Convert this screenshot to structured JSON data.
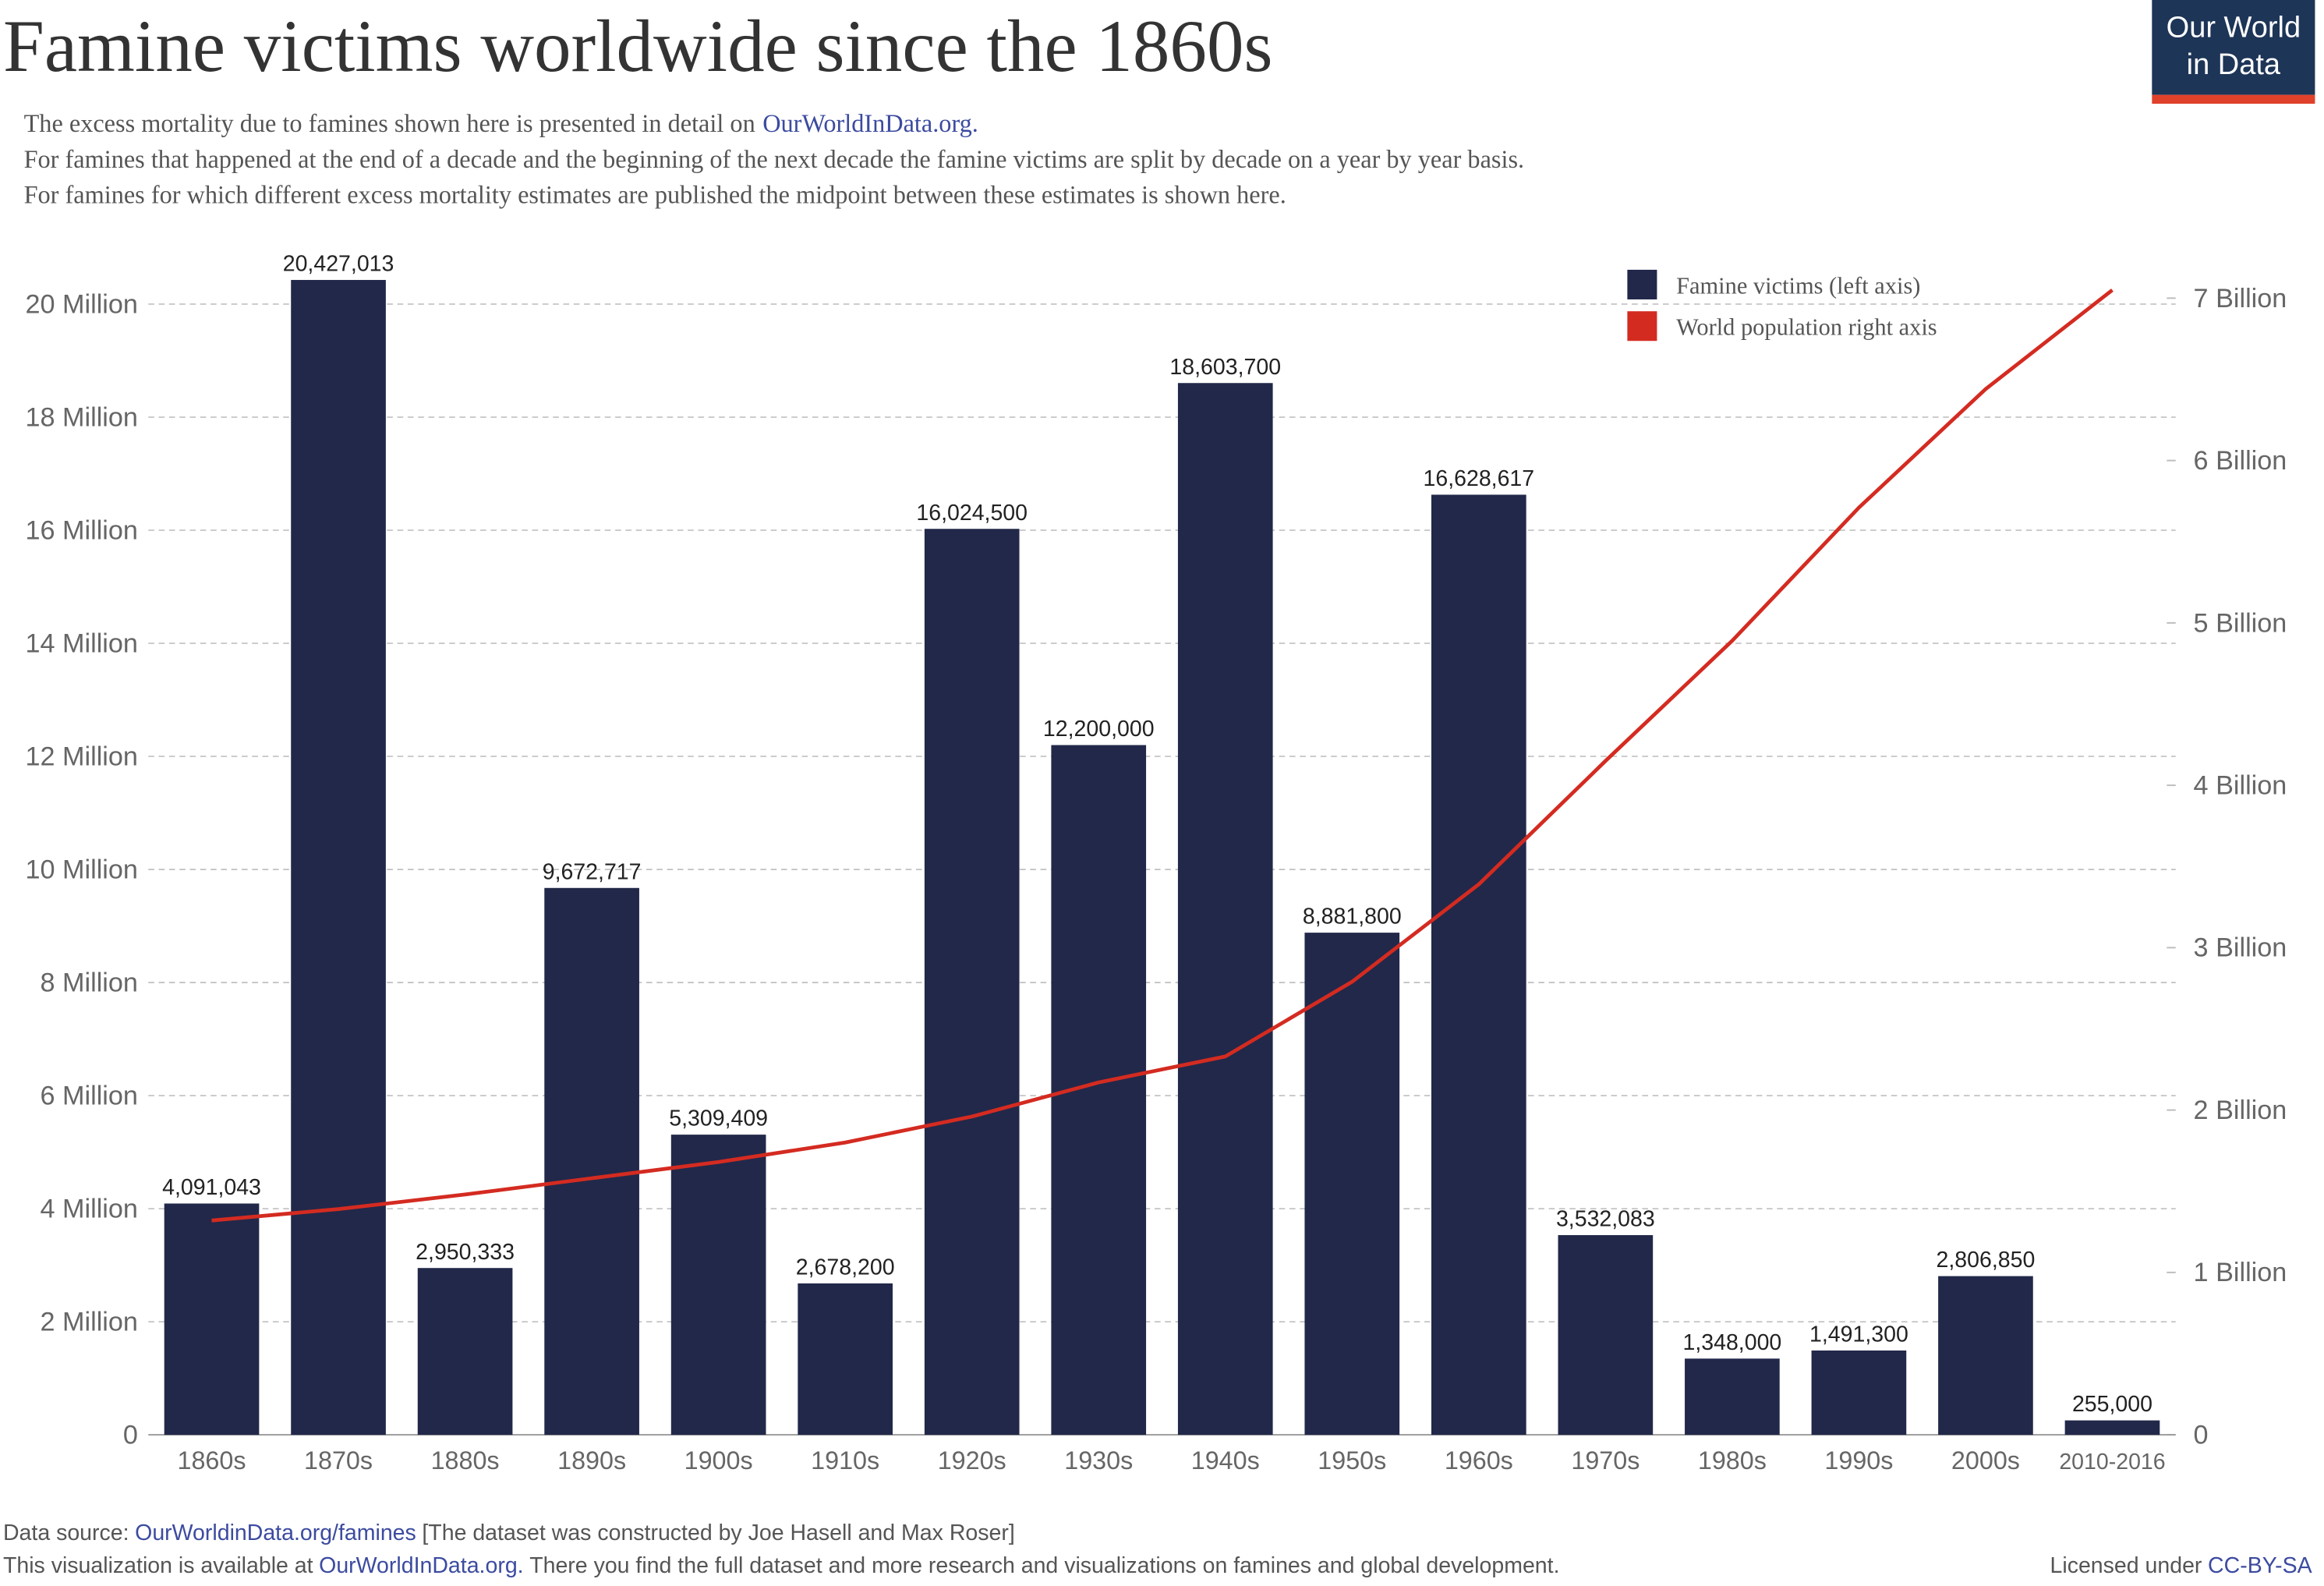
{
  "logo": [
    "Our World",
    "in Data"
  ],
  "footer": {
    "source_prefix": "Data source:",
    "source_link": "OurWorldinData.org/famines",
    "source_note": "[The dataset was constructed by Joe Hasell and Max Roser]",
    "availability_prefix": "This visualization is available at",
    "availability_link": "OurWorldInData.org.",
    "availability_note": "There you find the full dataset and more research and visualizations on famines and global development.",
    "license_prefix": "Licensed under",
    "license_link": "CC-BY-SA"
  },
  "chart_data": {
    "type": "bar",
    "title": "Famine victims worldwide since the 1860s",
    "subtitle": [
      "The excess mortality due to famines shown here is presented in detail on",
      "For famines that happened at the end of a decade and the beginning of the next decade the famine victims are split by decade on a year by year basis.",
      "For famines for which different excess mortality estimates are published the midpoint between these estimates is shown here."
    ],
    "subtitle_link": "OurWorldInData.org.",
    "categories": [
      "1860s",
      "1870s",
      "1880s",
      "1890s",
      "1900s",
      "1910s",
      "1920s",
      "1930s",
      "1940s",
      "1950s",
      "1960s",
      "1970s",
      "1980s",
      "1990s",
      "2000s",
      "2010-2016"
    ],
    "series": [
      {
        "name": "Famine victims (left axis)",
        "color": "#222849",
        "values": [
          4091043,
          20427013,
          2950333,
          9672717,
          5309409,
          2678200,
          16024500,
          12200000,
          18603700,
          8881800,
          16628617,
          3532083,
          1348000,
          1491300,
          2806850,
          255000
        ],
        "value_labels": [
          "4,091,043",
          "20,427,013",
          "2,950,333",
          "9,672,717",
          "5,309,409",
          "2,678,200",
          "16,024,500",
          "12,200,000",
          "18,603,700",
          "8,881,800",
          "16,628,617",
          "3,532,083",
          "1,348,000",
          "1,491,300",
          "2,806,850",
          "255,000"
        ]
      },
      {
        "name": "World population right axis",
        "color": "#d42b21",
        "type": "line",
        "axis": "y2",
        "values": [
          1320000000,
          1390000000,
          1480000000,
          1580000000,
          1680000000,
          1800000000,
          1960000000,
          2170000000,
          2330000000,
          2790000000,
          3390000000,
          4150000000,
          4890000000,
          5710000000,
          6440000000,
          7050000000
        ]
      }
    ],
    "ylim": [
      0,
      20450000
    ],
    "yticks": [
      {
        "value": 0,
        "label": "0"
      },
      {
        "value": 2000000,
        "label": "2 Million"
      },
      {
        "value": 4000000,
        "label": "4 Million"
      },
      {
        "value": 6000000,
        "label": "6 Million"
      },
      {
        "value": 8000000,
        "label": "8 Million"
      },
      {
        "value": 10000000,
        "label": "10 Million"
      },
      {
        "value": 12000000,
        "label": "12 Million"
      },
      {
        "value": 14000000,
        "label": "14 Million"
      },
      {
        "value": 16000000,
        "label": "16 Million"
      },
      {
        "value": 18000000,
        "label": "18 Million"
      },
      {
        "value": 20000000,
        "label": "20 Million"
      }
    ],
    "y2lim": [
      0,
      7120000000
    ],
    "y2ticks": [
      {
        "value": 0,
        "label": "0"
      },
      {
        "value": 1000000000,
        "label": "1 Billion"
      },
      {
        "value": 2000000000,
        "label": "2 Billion"
      },
      {
        "value": 3000000000,
        "label": "3 Billion"
      },
      {
        "value": 4000000000,
        "label": "4 Billion"
      },
      {
        "value": 5000000000,
        "label": "5 Billion"
      },
      {
        "value": 6000000000,
        "label": "6 Billion"
      },
      {
        "value": 7000000000,
        "label": "7 Billion"
      }
    ],
    "grid": true,
    "legend": "top-right"
  }
}
